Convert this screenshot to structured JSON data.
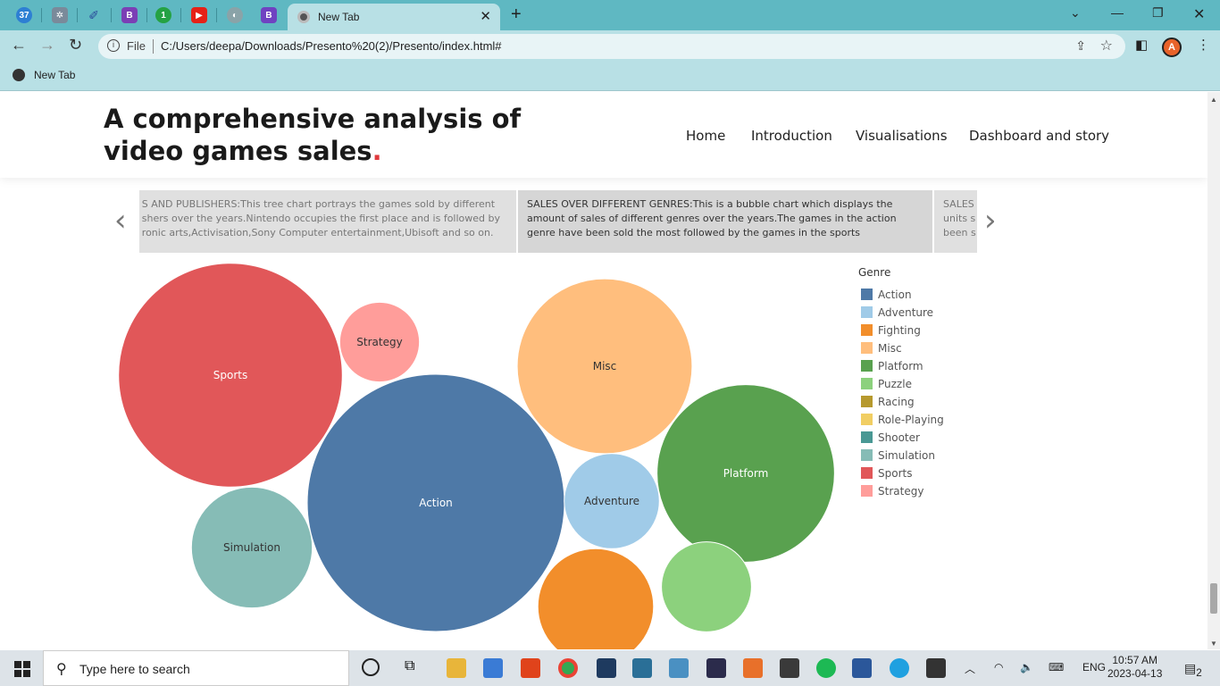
{
  "browser": {
    "tabs": {
      "badge_count": "37",
      "active_tab_title": "New Tab"
    },
    "url_scheme_label": "File",
    "url": "C:/Users/deepa/Downloads/Presento%20(2)/Presento/index.html#",
    "bookmark": "New Tab",
    "avatar_letter": "A"
  },
  "site": {
    "title": "A comprehensive analysis of video games sales",
    "title_dot": ".",
    "nav": [
      "Home",
      "Introduction",
      "Visualisations",
      "Dashboard and story"
    ]
  },
  "carousel": {
    "left_lines": [
      "S AND PUBLISHERS:This tree chart portrays the games sold by different",
      "shers over the years.Nintendo occupies the first place and is followed by",
      "ronic arts,Activisation,Sony Computer entertainment,Ubisoft and so on."
    ],
    "center_lines": [
      "SALES OVER DIFFERENT GENRES:This is a bubble chart which displays the",
      "amount of sales of different genres over the years.The games in the action",
      "genre have been sold the most  followed by the games in the sports"
    ],
    "right_lines": [
      "SALES",
      "units s",
      "been s"
    ],
    "prev": "‹",
    "next": "›"
  },
  "chart_data": {
    "type": "bubble",
    "title": "",
    "legend_title": "Genre",
    "legend": [
      {
        "name": "Action",
        "color": "#4e79a7"
      },
      {
        "name": "Adventure",
        "color": "#a0cbe8"
      },
      {
        "name": "Fighting",
        "color": "#f28e2b"
      },
      {
        "name": "Misc",
        "color": "#ffbe7d"
      },
      {
        "name": "Platform",
        "color": "#59a14f"
      },
      {
        "name": "Puzzle",
        "color": "#8cd17d"
      },
      {
        "name": "Racing",
        "color": "#b6992d"
      },
      {
        "name": "Role-Playing",
        "color": "#f1ce63"
      },
      {
        "name": "Shooter",
        "color": "#499894"
      },
      {
        "name": "Simulation",
        "color": "#86bcb6"
      },
      {
        "name": "Sports",
        "color": "#e15759"
      },
      {
        "name": "Strategy",
        "color": "#ff9d9a"
      }
    ],
    "bubbles": [
      {
        "genre": "Sports",
        "label": "Sports",
        "relative_size": 0.87
      },
      {
        "genre": "Strategy",
        "label": "Strategy",
        "relative_size": 0.31
      },
      {
        "genre": "Action",
        "label": "Action",
        "relative_size": 1.0
      },
      {
        "genre": "Misc",
        "label": "Misc",
        "relative_size": 0.68
      },
      {
        "genre": "Adventure",
        "label": "Adventure",
        "relative_size": 0.37
      },
      {
        "genre": "Platform",
        "label": "Platform",
        "relative_size": 0.69
      },
      {
        "genre": "Simulation",
        "label": "Simulation",
        "relative_size": 0.47
      },
      {
        "genre": "Fighting",
        "label": "",
        "relative_size": 0.45
      },
      {
        "genre": "Puzzle",
        "label": "",
        "relative_size": 0.35
      }
    ]
  },
  "taskbar": {
    "search_placeholder": "Type here to search",
    "language": "ENG",
    "time": "10:57 AM",
    "date": "2023-04-13",
    "notification_count": "2"
  }
}
